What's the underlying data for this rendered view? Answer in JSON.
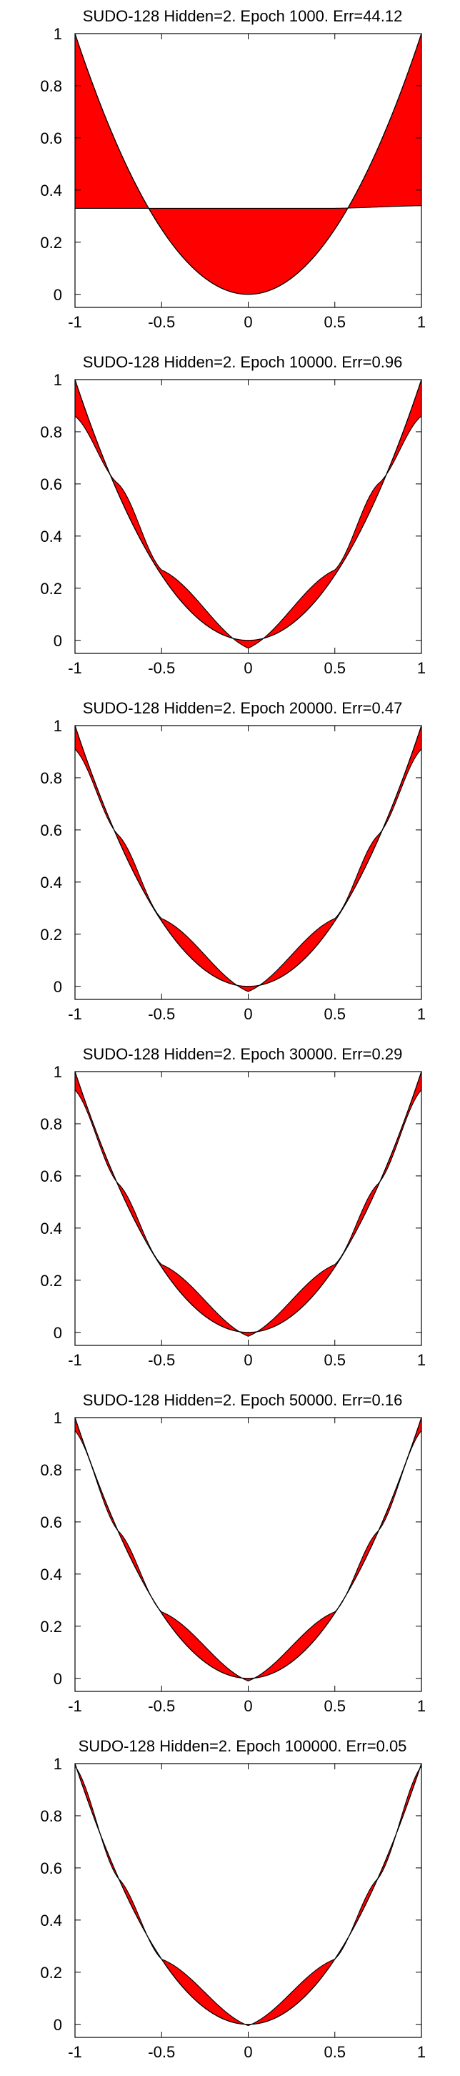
{
  "chart_data": [
    {
      "type": "line",
      "title": "SUDO-128 Hidden=2. Epoch 1000. Err=44.12",
      "xlabel": "",
      "ylabel": "",
      "xlim": [
        -1,
        1
      ],
      "ylim": [
        -0.05,
        1
      ],
      "x_ticks": [
        "-1",
        "-0.5",
        "0",
        "0.5",
        "1"
      ],
      "y_ticks": [
        "0",
        "0.2",
        "0.4",
        "0.6",
        "0.8",
        "1"
      ],
      "grid": false,
      "series": [
        {
          "kind": "target",
          "color": "#000000",
          "formula": "y = x^2",
          "points": [
            [
              -1,
              1
            ],
            [
              -0.5,
              0.25
            ],
            [
              0,
              0
            ],
            [
              0.5,
              0.25
            ],
            [
              1,
              1
            ]
          ]
        },
        {
          "kind": "network-output",
          "color": "#000000",
          "points": [
            [
              -1,
              0.33
            ],
            [
              -0.5,
              0.33
            ],
            [
              0,
              0.33
            ],
            [
              0.5,
              0.33
            ],
            [
              1,
              0.34
            ]
          ]
        },
        {
          "kind": "error-fill",
          "color": "#ff0000"
        }
      ]
    },
    {
      "type": "line",
      "title": "SUDO-128 Hidden=2. Epoch 10000. Err=0.96",
      "xlabel": "",
      "ylabel": "",
      "xlim": [
        -1,
        1
      ],
      "ylim": [
        -0.05,
        1
      ],
      "x_ticks": [
        "-1",
        "-0.5",
        "0",
        "0.5",
        "1"
      ],
      "y_ticks": [
        "0",
        "0.2",
        "0.4",
        "0.6",
        "0.8",
        "1"
      ],
      "grid": false,
      "series": [
        {
          "kind": "target",
          "color": "#000000",
          "formula": "y = x^2",
          "points": [
            [
              -1,
              1
            ],
            [
              -0.5,
              0.25
            ],
            [
              0,
              0
            ],
            [
              0.5,
              0.25
            ],
            [
              1,
              1
            ]
          ]
        },
        {
          "kind": "network-output",
          "color": "#000000",
          "points": [
            [
              -1,
              0.86
            ],
            [
              -0.75,
              0.6
            ],
            [
              -0.5,
              0.27
            ],
            [
              0,
              -0.03
            ],
            [
              0.5,
              0.27
            ],
            [
              0.75,
              0.6
            ],
            [
              1,
              0.86
            ]
          ]
        },
        {
          "kind": "error-fill",
          "color": "#ff0000"
        }
      ]
    },
    {
      "type": "line",
      "title": "SUDO-128 Hidden=2. Epoch 20000. Err=0.47",
      "xlabel": "",
      "ylabel": "",
      "xlim": [
        -1,
        1
      ],
      "ylim": [
        -0.05,
        1
      ],
      "x_ticks": [
        "-1",
        "-0.5",
        "0",
        "0.5",
        "1"
      ],
      "y_ticks": [
        "0",
        "0.2",
        "0.4",
        "0.6",
        "0.8",
        "1"
      ],
      "grid": false,
      "series": [
        {
          "kind": "target",
          "color": "#000000",
          "formula": "y = x^2",
          "points": [
            [
              -1,
              1
            ],
            [
              -0.5,
              0.25
            ],
            [
              0,
              0
            ],
            [
              0.5,
              0.25
            ],
            [
              1,
              1
            ]
          ]
        },
        {
          "kind": "network-output",
          "color": "#000000",
          "points": [
            [
              -1,
              0.91
            ],
            [
              -0.75,
              0.58
            ],
            [
              -0.5,
              0.26
            ],
            [
              0,
              -0.02
            ],
            [
              0.5,
              0.26
            ],
            [
              0.75,
              0.58
            ],
            [
              1,
              0.91
            ]
          ]
        },
        {
          "kind": "error-fill",
          "color": "#ff0000"
        }
      ]
    },
    {
      "type": "line",
      "title": "SUDO-128 Hidden=2. Epoch 30000. Err=0.29",
      "xlabel": "",
      "ylabel": "",
      "xlim": [
        -1,
        1
      ],
      "ylim": [
        -0.05,
        1
      ],
      "x_ticks": [
        "-1",
        "-0.5",
        "0",
        "0.5",
        "1"
      ],
      "y_ticks": [
        "0",
        "0.2",
        "0.4",
        "0.6",
        "0.8",
        "1"
      ],
      "grid": false,
      "series": [
        {
          "kind": "target",
          "color": "#000000",
          "formula": "y = x^2",
          "points": [
            [
              -1,
              1
            ],
            [
              -0.5,
              0.25
            ],
            [
              0,
              0
            ],
            [
              0.5,
              0.25
            ],
            [
              1,
              1
            ]
          ]
        },
        {
          "kind": "network-output",
          "color": "#000000",
          "points": [
            [
              -1,
              0.93
            ],
            [
              -0.75,
              0.57
            ],
            [
              -0.5,
              0.26
            ],
            [
              0,
              -0.015
            ],
            [
              0.5,
              0.26
            ],
            [
              0.75,
              0.57
            ],
            [
              1,
              0.93
            ]
          ]
        },
        {
          "kind": "error-fill",
          "color": "#ff0000"
        }
      ]
    },
    {
      "type": "line",
      "title": "SUDO-128 Hidden=2. Epoch 50000. Err=0.16",
      "xlabel": "",
      "ylabel": "",
      "xlim": [
        -1,
        1
      ],
      "ylim": [
        -0.05,
        1
      ],
      "x_ticks": [
        "-1",
        "-0.5",
        "0",
        "0.5",
        "1"
      ],
      "y_ticks": [
        "0",
        "0.2",
        "0.4",
        "0.6",
        "0.8",
        "1"
      ],
      "grid": false,
      "series": [
        {
          "kind": "target",
          "color": "#000000",
          "formula": "y = x^2",
          "points": [
            [
              -1,
              1
            ],
            [
              -0.5,
              0.25
            ],
            [
              0,
              0
            ],
            [
              0.5,
              0.25
            ],
            [
              1,
              1
            ]
          ]
        },
        {
          "kind": "network-output",
          "color": "#000000",
          "points": [
            [
              -1,
              0.95
            ],
            [
              -0.75,
              0.565
            ],
            [
              -0.5,
              0.255
            ],
            [
              0,
              -0.01
            ],
            [
              0.5,
              0.255
            ],
            [
              0.75,
              0.565
            ],
            [
              1,
              0.95
            ]
          ]
        },
        {
          "kind": "error-fill",
          "color": "#ff0000"
        }
      ]
    },
    {
      "type": "line",
      "title": "SUDO-128 Hidden=2. Epoch 100000. Err=0.05",
      "xlabel": "",
      "ylabel": "",
      "xlim": [
        -1,
        1
      ],
      "ylim": [
        -0.05,
        1
      ],
      "x_ticks": [
        "-1",
        "-0.5",
        "0",
        "0.5",
        "1"
      ],
      "y_ticks": [
        "0",
        "0.2",
        "0.4",
        "0.6",
        "0.8",
        "1"
      ],
      "grid": false,
      "series": [
        {
          "kind": "target",
          "color": "#000000",
          "formula": "y = x^2",
          "points": [
            [
              -1,
              1
            ],
            [
              -0.5,
              0.25
            ],
            [
              0,
              0
            ],
            [
              0.5,
              0.25
            ],
            [
              1,
              1
            ]
          ]
        },
        {
          "kind": "network-output",
          "color": "#000000",
          "points": [
            [
              -1,
              0.99
            ],
            [
              -0.75,
              0.56
            ],
            [
              -0.5,
              0.25
            ],
            [
              0,
              -0.005
            ],
            [
              0.5,
              0.25
            ],
            [
              0.75,
              0.56
            ],
            [
              1,
              0.99
            ]
          ]
        },
        {
          "kind": "error-fill",
          "color": "#ff0000"
        }
      ]
    }
  ]
}
